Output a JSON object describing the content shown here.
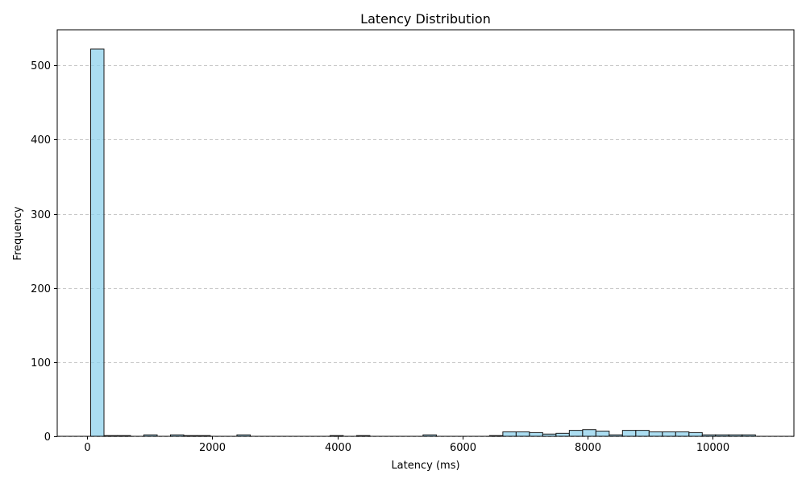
{
  "chart_data": {
    "type": "bar",
    "title": "Latency Distribution",
    "xlabel": "Latency (ms)",
    "ylabel": "Frequency",
    "xlim": [
      -480,
      11300
    ],
    "ylim": [
      0,
      548
    ],
    "xticks": [
      0,
      2000,
      4000,
      6000,
      8000,
      10000
    ],
    "yticks": [
      0,
      100,
      200,
      300,
      400,
      500
    ],
    "grid": "y-dashed",
    "colors": {
      "bar_fill": "#87ceeb",
      "bar_edge": "#1a1a1a",
      "grid": "#c8c8c8"
    },
    "bin_edges": [
      55,
      267.6,
      480.2,
      692.8,
      905.4,
      1118,
      1330.6,
      1543.2,
      1755.8,
      1968.4,
      2181,
      2393.6,
      2606.2,
      2818.8,
      3031.4,
      3244,
      3456.6,
      3669.2,
      3881.8,
      4094.4,
      4307,
      4519.6,
      4732.2,
      4944.8,
      5157.4,
      5370,
      5582.6,
      5795.2,
      6007.8,
      6220.4,
      6433,
      6645.6,
      6858.2,
      7070.8,
      7283.4,
      7496,
      7708.6,
      7921.2,
      8133.8,
      8346.4,
      8559,
      8771.6,
      8984.2,
      9196.8,
      9409.4,
      9622,
      9834.6,
      10047.2,
      10259.8,
      10472.4,
      10685
    ],
    "counts": [
      522,
      1,
      1,
      0,
      2,
      0,
      2,
      1,
      1,
      0,
      0,
      2,
      0,
      0,
      0,
      0,
      0,
      0,
      1,
      0,
      1,
      0,
      0,
      0,
      0,
      2,
      0,
      0,
      0,
      0,
      1,
      6,
      6,
      5,
      3,
      4,
      8,
      9,
      7,
      2,
      8,
      8,
      6,
      6,
      6,
      5,
      2,
      2,
      2,
      2
    ]
  }
}
